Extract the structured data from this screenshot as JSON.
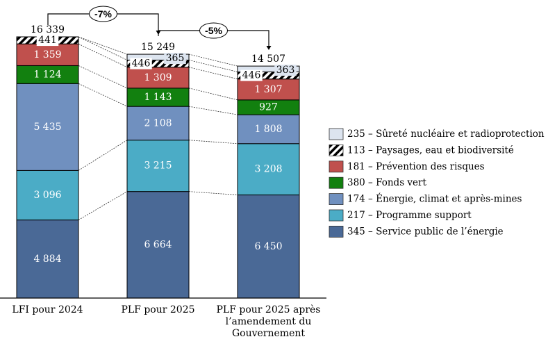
{
  "chart_data": {
    "type": "bar",
    "stacked": true,
    "title": "",
    "xlabel": "",
    "ylabel": "",
    "categories": [
      [
        "LFI pour 2024"
      ],
      [
        "PLF pour 2025"
      ],
      [
        "PLF pour 2025 après",
        "l’amendement du",
        "Gouvernement"
      ]
    ],
    "totals": [
      "16 339",
      "15 249",
      "14 507"
    ],
    "total_values": [
      16339,
      15249,
      14507
    ],
    "series": [
      {
        "name": "345 – Service public de l’énergie",
        "color": "#4a6996",
        "values": [
          4884,
          6664,
          6450
        ],
        "labels": [
          "4 884",
          "6 664",
          "6 450"
        ]
      },
      {
        "name": "217 – Programme support",
        "color": "#4bacc6",
        "values": [
          3096,
          3215,
          3208
        ],
        "labels": [
          "3 096",
          "3 215",
          "3 208"
        ]
      },
      {
        "name": "174 – Énergie, climat et après-mines",
        "color": "#7090bf",
        "values": [
          5435,
          2108,
          1808
        ],
        "labels": [
          "5 435",
          "2 108",
          "1 808"
        ]
      },
      {
        "name": "380 – Fonds vert",
        "color": "#12800f",
        "values": [
          1124,
          1143,
          927
        ],
        "labels": [
          "1 124",
          "1 143",
          "927"
        ]
      },
      {
        "name": "181 – Prévention des risques",
        "color": "#c0504d",
        "values": [
          1359,
          1309,
          1307
        ],
        "labels": [
          "1 359",
          "1 309",
          "1 307"
        ]
      },
      {
        "name": "113 – Paysages, eau et biodiversité",
        "color": "hatch",
        "values": [
          441,
          446,
          446
        ],
        "labels": [
          "441",
          "446",
          "446"
        ]
      },
      {
        "name": "235 – Sûreté nucléaire et radioprotection",
        "color": "#dce4ef",
        "values": [
          0,
          365,
          363
        ],
        "labels": [
          "",
          "365",
          "363"
        ]
      }
    ],
    "legend_order": [
      6,
      5,
      4,
      3,
      2,
      1,
      0
    ],
    "legend_position": "right",
    "changes": [
      {
        "from": 0,
        "to": 1,
        "label": "-7%"
      },
      {
        "from": 1,
        "to": 2,
        "label": "-5%"
      }
    ],
    "grid": false
  }
}
